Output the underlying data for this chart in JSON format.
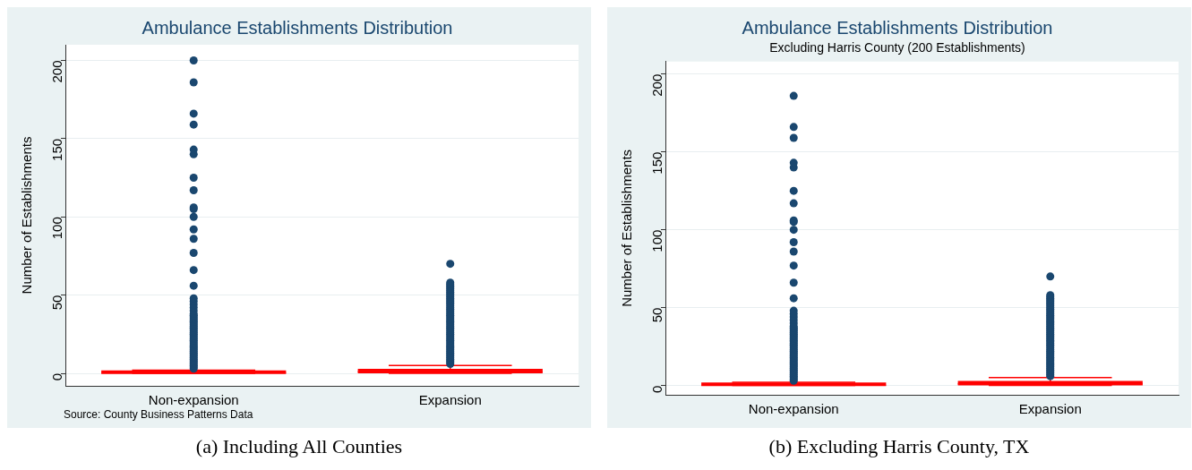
{
  "chart_data": [
    {
      "type": "box",
      "title": "Ambulance Establishments Distribution",
      "ylabel": "Number of Establishments",
      "categories": [
        "Non-expansion",
        "Expansion"
      ],
      "ylim": [
        -8,
        210
      ],
      "yticks": [
        0,
        50,
        100,
        150,
        200
      ],
      "grid": "y",
      "annotations": [
        "Source: County Business Patterns Data",
        "(a) Including All Counties"
      ],
      "series": [
        {
          "color": "#ff0000",
          "boxes": [
            {
              "low": 0,
              "q1": 0,
              "median": 0,
              "q3": 1,
              "high": 2,
              "outliers": [
                3,
                4,
                5,
                6,
                7,
                8,
                9,
                10,
                11,
                12,
                13,
                14,
                15,
                16,
                17,
                18,
                19,
                20,
                21,
                22,
                23,
                24,
                25,
                26,
                27,
                28,
                29,
                30,
                31,
                32,
                33,
                34,
                35,
                36,
                37,
                38,
                40,
                42,
                44,
                46,
                48,
                56,
                66,
                77,
                86,
                92,
                100,
                105,
                106,
                117,
                125,
                140,
                143,
                159,
                166,
                186,
                200
              ]
            },
            {
              "low": 0,
              "q1": 0,
              "median": 1,
              "q3": 2,
              "high": 5,
              "outliers": [
                6,
                7,
                8,
                9,
                10,
                11,
                12,
                13,
                14,
                15,
                16,
                17,
                18,
                19,
                20,
                21,
                22,
                23,
                24,
                25,
                26,
                27,
                28,
                29,
                30,
                31,
                32,
                33,
                34,
                35,
                36,
                37,
                38,
                39,
                40,
                41,
                42,
                43,
                44,
                45,
                46,
                47,
                48,
                49,
                50,
                51,
                52,
                53,
                54,
                55,
                56,
                57,
                58,
                70
              ]
            }
          ]
        }
      ]
    },
    {
      "type": "box",
      "title": "Ambulance Establishments Distribution",
      "subtitle": "Excluding Harris County (200 Establishments)",
      "ylabel": "Number of Establishments",
      "categories": [
        "Non-expansion",
        "Expansion"
      ],
      "ylim": [
        -6,
        208
      ],
      "yticks": [
        0,
        50,
        100,
        150,
        200
      ],
      "grid": "y",
      "annotations": [
        "(b) Excluding Harris County, TX"
      ],
      "series": [
        {
          "color": "#ff0000",
          "boxes": [
            {
              "low": 0,
              "q1": 0,
              "median": 0,
              "q3": 1,
              "high": 2,
              "outliers": [
                3,
                4,
                5,
                6,
                7,
                8,
                9,
                10,
                11,
                12,
                13,
                14,
                15,
                16,
                17,
                18,
                19,
                20,
                21,
                22,
                23,
                24,
                25,
                26,
                27,
                28,
                29,
                30,
                31,
                32,
                33,
                34,
                35,
                36,
                37,
                38,
                40,
                42,
                44,
                46,
                48,
                56,
                66,
                77,
                86,
                92,
                100,
                105,
                106,
                117,
                125,
                140,
                143,
                159,
                166,
                186
              ]
            },
            {
              "low": 0,
              "q1": 0,
              "median": 1,
              "q3": 2,
              "high": 5,
              "outliers": [
                6,
                7,
                8,
                9,
                10,
                11,
                12,
                13,
                14,
                15,
                16,
                17,
                18,
                19,
                20,
                21,
                22,
                23,
                24,
                25,
                26,
                27,
                28,
                29,
                30,
                31,
                32,
                33,
                34,
                35,
                36,
                37,
                38,
                39,
                40,
                41,
                42,
                43,
                44,
                45,
                46,
                47,
                48,
                49,
                50,
                51,
                52,
                53,
                54,
                55,
                56,
                57,
                58,
                70
              ]
            }
          ]
        }
      ]
    }
  ]
}
